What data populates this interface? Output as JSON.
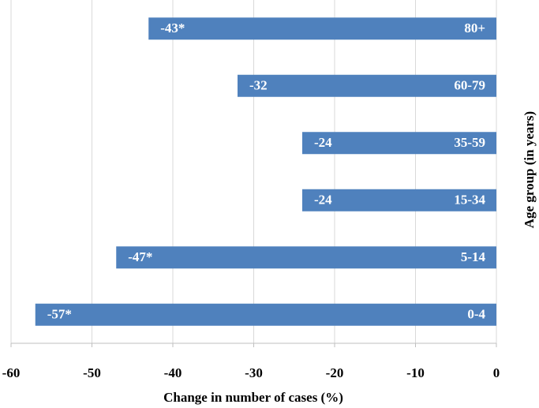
{
  "chart_data": {
    "type": "barh",
    "x_label": "Change in number of cases (%)",
    "y_label": "Age group (in years)",
    "categories": [
      "80+",
      "60-79",
      "35-59",
      "15-34",
      "5-14",
      "0-4"
    ],
    "values": [
      -43,
      -32,
      -24,
      -24,
      -47,
      -57
    ],
    "value_labels": [
      "-43*",
      "-32",
      "-24",
      "-24",
      "-47*",
      "-57*"
    ],
    "color": "#4f81bd",
    "xlim": [
      -60,
      0
    ],
    "xticks": [
      -60,
      -50,
      -40,
      -30,
      -20,
      -10,
      0
    ],
    "grid": true
  }
}
